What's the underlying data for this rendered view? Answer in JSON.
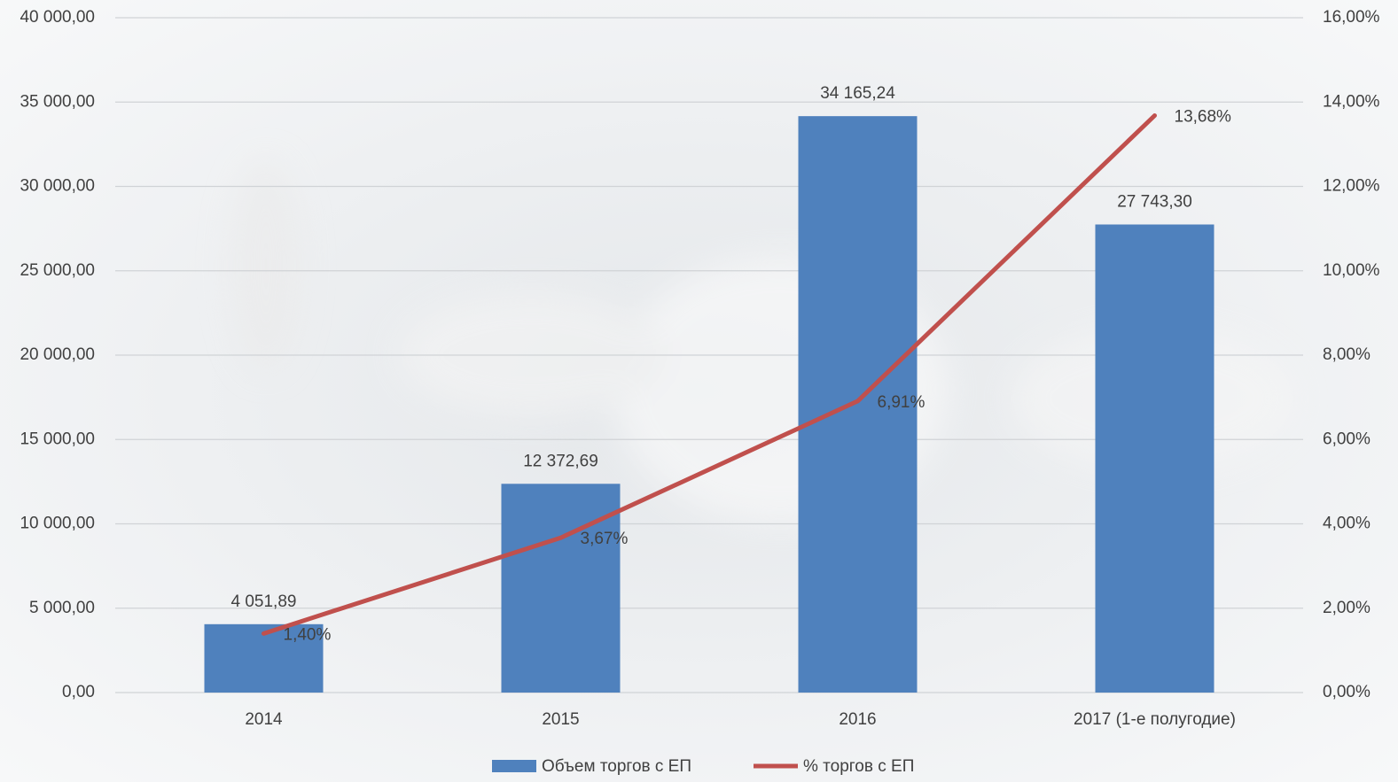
{
  "chart_data": {
    "type": "bar",
    "categories": [
      "2014",
      "2015",
      "2016",
      "2017 (1-е полугодие)"
    ],
    "series": [
      {
        "name": "Объем торгов с ЕП",
        "type": "bar",
        "color": "#4f81bd",
        "values": [
          4051.89,
          12372.69,
          34165.24,
          27743.3
        ],
        "value_labels": [
          "4 051,89",
          "12 372,69",
          "34 165,24",
          "27 743,30"
        ]
      },
      {
        "name": "% торгов с ЕП",
        "type": "line",
        "axis": "y2",
        "color": "#c0504d",
        "values": [
          1.4,
          3.67,
          6.91,
          13.68
        ],
        "value_labels": [
          "1,40%",
          "3,67%",
          "6,91%",
          "13,68%"
        ]
      }
    ],
    "ylim": [
      0,
      40000
    ],
    "yticks": [
      {
        "value": 0,
        "label": "0,00"
      },
      {
        "value": 5000,
        "label": "5 000,00"
      },
      {
        "value": 10000,
        "label": "10 000,00"
      },
      {
        "value": 15000,
        "label": "15 000,00"
      },
      {
        "value": 20000,
        "label": "20 000,00"
      },
      {
        "value": 25000,
        "label": "25 000,00"
      },
      {
        "value": 30000,
        "label": "30 000,00"
      },
      {
        "value": 35000,
        "label": "35 000,00"
      },
      {
        "value": 40000,
        "label": "40 000,00"
      }
    ],
    "y2lim": [
      0,
      16
    ],
    "y2ticks": [
      {
        "value": 0,
        "label": "0,00%"
      },
      {
        "value": 2,
        "label": "2,00%"
      },
      {
        "value": 4,
        "label": "4,00%"
      },
      {
        "value": 6,
        "label": "6,00%"
      },
      {
        "value": 8,
        "label": "8,00%"
      },
      {
        "value": 10,
        "label": "10,00%"
      },
      {
        "value": 12,
        "label": "12,00%"
      },
      {
        "value": 14,
        "label": "14,00%"
      },
      {
        "value": 16,
        "label": "16,00%"
      }
    ],
    "grid": true,
    "legend": "bottom"
  }
}
